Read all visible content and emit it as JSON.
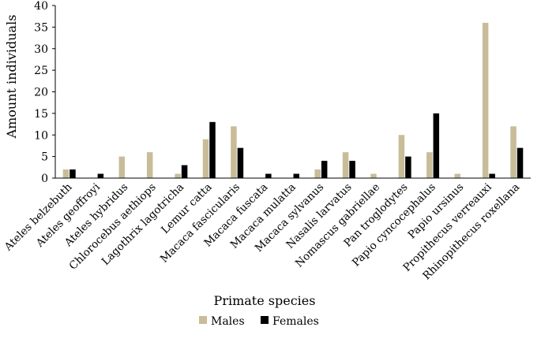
{
  "chart_data": {
    "type": "bar",
    "title": "",
    "xlabel": "Primate species",
    "ylabel": "Amount individuals",
    "ylim": [
      0,
      40
    ],
    "yticks": [
      "0",
      "5",
      "10",
      "15",
      "20",
      "25",
      "30",
      "35",
      "40"
    ],
    "grid": false,
    "legend_position": "bottom-center",
    "categories": [
      "Ateles belzebuth",
      "Ateles geoffroyi",
      "Ateles hybridus",
      "Chlorocebus aethiops",
      "Lagothrix lagotricha",
      "Lemur catta",
      "Macaca fascicularis",
      "Macaca fuscata",
      "Macaca mulatta",
      "Macaca sylvanus",
      "Nasalis larvatus",
      "Nomascus gabriellae",
      "Pan troglodytes",
      "Papio cyncocephalus",
      "Papio ursinus",
      "Propithecus verreauxi",
      "Rhinopithecus roxellana"
    ],
    "series": [
      {
        "name": "Males",
        "color": "#c8bd98",
        "values": [
          2,
          0,
          5,
          6,
          1,
          9,
          12,
          0,
          0,
          2,
          6,
          1,
          10,
          6,
          1,
          36,
          12
        ]
      },
      {
        "name": "Females",
        "color": "#000000",
        "values": [
          2,
          1,
          0,
          0,
          3,
          13,
          7,
          1,
          1,
          4,
          4,
          0,
          5,
          15,
          0,
          1,
          7
        ]
      }
    ]
  }
}
